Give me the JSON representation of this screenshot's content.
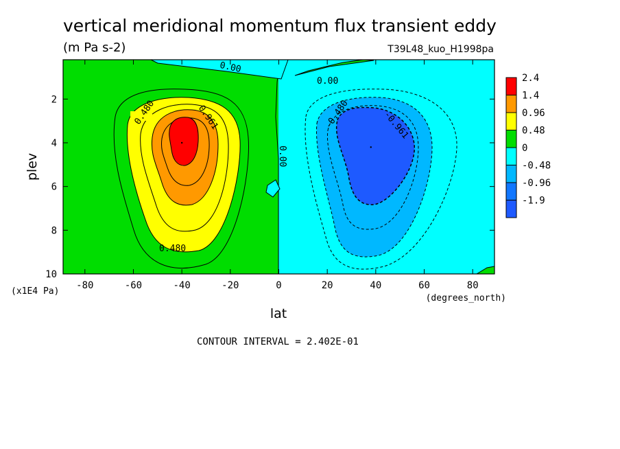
{
  "chart_data": {
    "type": "heatmap",
    "title": "vertical meridional momentum flux transient eddy",
    "units": "(m Pa s-2)",
    "dataset": "T39L48_kuo_H1998pa",
    "xlabel": "lat",
    "x_units": "(degrees_north)",
    "ylabel": "plev",
    "y_units": "(x1E4 Pa)",
    "x_ticks": [
      "-80",
      "-60",
      "-40",
      "-20",
      "0",
      "20",
      "40",
      "60",
      "80"
    ],
    "y_ticks": [
      "2",
      "4",
      "6",
      "8",
      "10"
    ],
    "xlim": [
      -89,
      89
    ],
    "ylim": [
      0.2,
      10
    ],
    "y_inverted": true,
    "footer": "CONTOUR INTERVAL = 2.402E-01",
    "legend": {
      "placement": "right",
      "labels": [
        "2.4",
        "1.4",
        "0.96",
        "0.48",
        "0",
        "-0.48",
        "-0.96",
        "-1.9"
      ],
      "colors": [
        "#ff0000",
        "#ff9900",
        "#ffff00",
        "#00dd00",
        "#00ffff",
        "#00b8ff",
        "#1177ff",
        "#1e5aff"
      ]
    },
    "contour_labels": [
      {
        "text": "0.480",
        "lat": -56,
        "plev": 3.1
      },
      {
        "text": "0.961",
        "lat": -30,
        "plev": 3.0
      },
      {
        "text": "0.480",
        "lat": -36,
        "plev": 8.7
      },
      {
        "text": "-0.480",
        "lat": 22,
        "plev": 3.1
      },
      {
        "text": "-0.961",
        "lat": 47,
        "plev": 3.1
      },
      {
        "text": "0.00",
        "lat": -19,
        "plev": 1.2
      },
      {
        "text": "0.00",
        "lat": 20,
        "plev": 1.7
      },
      {
        "text": "0.00",
        "lat": 1,
        "plev": 4.2
      }
    ],
    "extrema": [
      {
        "name": "southern maximum",
        "lat": -40,
        "plev": 4,
        "value": 2.4
      },
      {
        "name": "northern minimum",
        "lat": 38,
        "plev": 4.2,
        "value": -1.9
      }
    ]
  }
}
